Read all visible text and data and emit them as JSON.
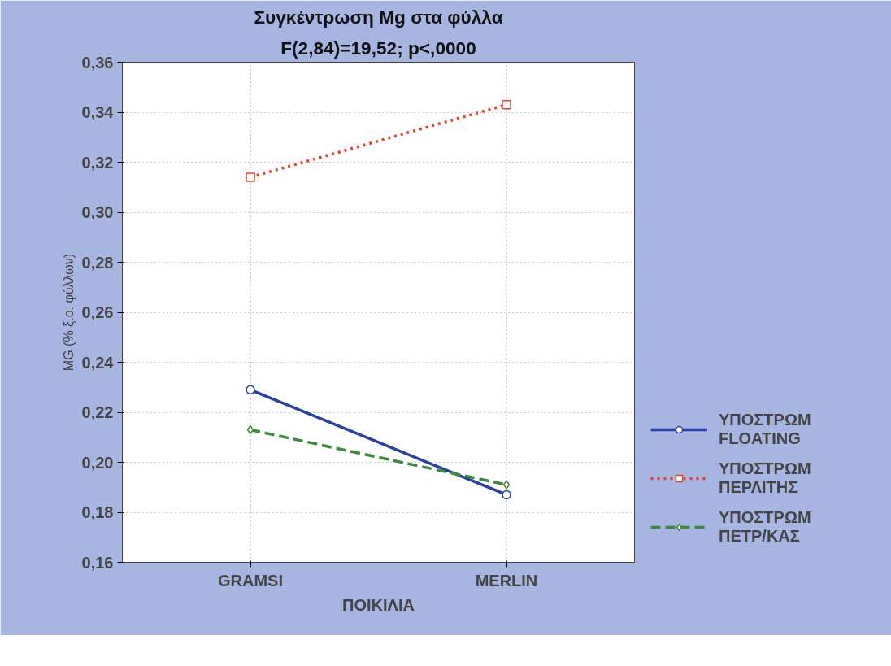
{
  "chart_data": {
    "type": "line",
    "title": "Συγκέντρωση Mg στα φύλλα",
    "subtitle": "F(2,84)=19,52; p<,0000",
    "xlabel": "ΠΟΙΚΙΛΙΑ",
    "ylabel": "MG (% ξ.ο. φύλλων)",
    "categories": [
      "GRAMSI",
      "MERLIN"
    ],
    "series": [
      {
        "name": "ΥΠΟΣΤΡΩΜ\nFLOATING",
        "color": "#2b3fa8",
        "values": [
          0.229,
          0.187
        ],
        "marker": "circle",
        "line_style": "solid"
      },
      {
        "name": "ΥΠΟΣΤΡΩΜ\nΠΕΡΛΙΤΗΣ",
        "color": "#e8402a",
        "values": [
          0.314,
          0.343
        ],
        "marker": "square",
        "line_style": "dotted"
      },
      {
        "name": "ΥΠΟΣΤΡΩΜ\nΠΕΤΡ/ΚΑΣ",
        "color": "#3a8a3a",
        "values": [
          0.213,
          0.191
        ],
        "marker": "diamond",
        "line_style": "dashed"
      }
    ],
    "ylim": [
      0.16,
      0.36
    ],
    "yticks": [
      {
        "value": 0.16,
        "label": "0,16"
      },
      {
        "value": 0.18,
        "label": "0,18"
      },
      {
        "value": 0.2,
        "label": "0,20"
      },
      {
        "value": 0.22,
        "label": "0,22"
      },
      {
        "value": 0.24,
        "label": "0,24"
      },
      {
        "value": 0.26,
        "label": "0,26"
      },
      {
        "value": 0.28,
        "label": "0,28"
      },
      {
        "value": 0.3,
        "label": "0,30"
      },
      {
        "value": 0.32,
        "label": "0,32"
      },
      {
        "value": 0.34,
        "label": "0,34"
      },
      {
        "value": 0.36,
        "label": "0,36"
      }
    ],
    "grid": true,
    "legend": "right"
  }
}
